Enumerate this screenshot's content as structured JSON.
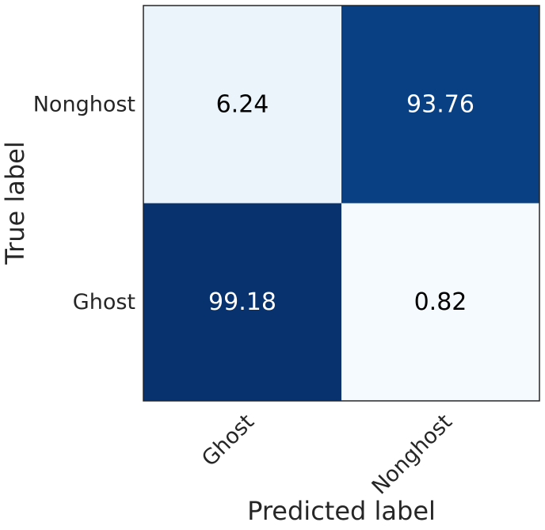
{
  "chart_data": {
    "type": "heatmap",
    "title": "",
    "xlabel": "Predicted label",
    "ylabel": "True label",
    "x_categories": [
      "Ghost",
      "Nonghost"
    ],
    "y_categories": [
      "Nonghost",
      "Ghost"
    ],
    "values": [
      [
        6.24,
        93.76
      ],
      [
        99.18,
        0.82
      ]
    ],
    "value_labels": [
      [
        "6.24",
        "93.76"
      ],
      [
        "99.18",
        "0.82"
      ]
    ],
    "vmin": 0,
    "vmax": 100,
    "colormap": "Blues",
    "colormap_low": "#f7fbff",
    "colormap_high": "#08306b",
    "text_color_dark": "#000000",
    "text_color_light": "#ffffff",
    "grid": false,
    "legend": "none"
  }
}
